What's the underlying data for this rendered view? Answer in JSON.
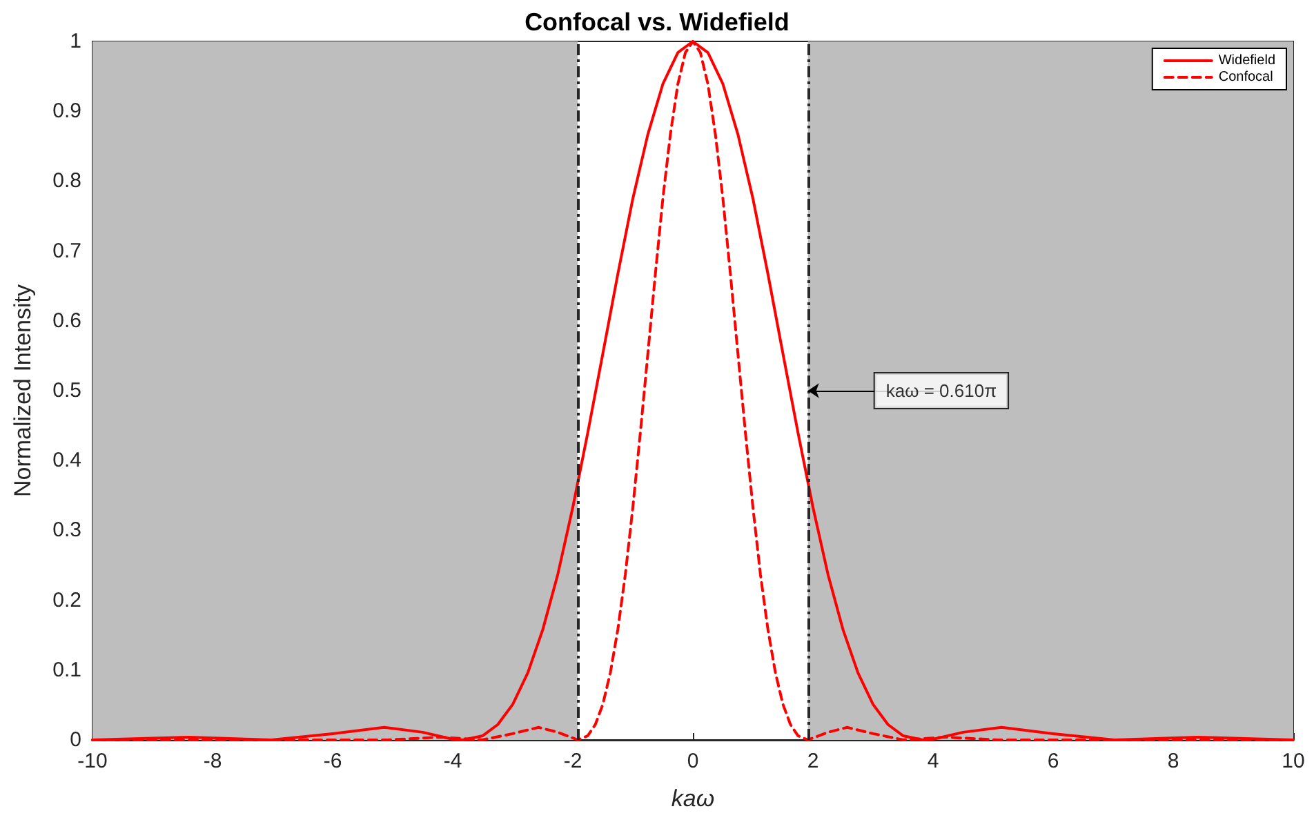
{
  "chart_data": {
    "type": "line",
    "title": "Confocal vs. Widefield",
    "xlabel": "kaω",
    "ylabel": "Normalized Intensity",
    "xlim": [
      -10,
      10
    ],
    "xticks": [
      -10,
      -8,
      -6,
      -4,
      -2,
      0,
      2,
      4,
      6,
      8,
      10
    ],
    "ylim": [
      0,
      1
    ],
    "yticks": [
      0,
      0.1,
      0.2,
      0.3,
      0.4,
      0.5,
      0.6,
      0.7,
      0.8,
      0.9,
      1
    ],
    "grid": false,
    "legend": "top right",
    "marker": "none",
    "series": [
      {
        "name": "Widefield",
        "color": "#ff0000",
        "line_style": "solid",
        "x": [
          -10,
          -8.4,
          -7.02,
          -6,
          -5.14,
          -4.5,
          -4,
          -3.83,
          -3.5,
          -3.25,
          -3,
          -2.75,
          -2.5,
          -2.25,
          -2,
          -1.75,
          -1.5,
          -1.25,
          -1,
          -0.75,
          -0.5,
          -0.25,
          0,
          0.25,
          0.5,
          0.75,
          1,
          1.25,
          1.5,
          1.75,
          2,
          2.25,
          2.5,
          2.75,
          3,
          3.25,
          3.5,
          3.83,
          4,
          4.5,
          5.14,
          6,
          7.02,
          8.4,
          10
        ],
        "values": [
          0,
          0.004,
          0,
          0.009,
          0.018,
          0.011,
          0.001,
          0,
          0.006,
          0.022,
          0.051,
          0.096,
          0.158,
          0.237,
          0.333,
          0.44,
          0.553,
          0.667,
          0.775,
          0.867,
          0.939,
          0.984,
          1,
          0.984,
          0.939,
          0.867,
          0.775,
          0.667,
          0.553,
          0.44,
          0.333,
          0.237,
          0.158,
          0.096,
          0.051,
          0.022,
          0.006,
          0,
          0.001,
          0.011,
          0.018,
          0.009,
          0,
          0.004,
          0
        ]
      },
      {
        "name": "Confocal",
        "color": "#ff0000",
        "line_style": "dashed",
        "x": [
          -10,
          -5.08,
          -4.2,
          -3.51,
          -3,
          -2.57,
          -2.25,
          -1.916,
          -1.75,
          -1.625,
          -1.5,
          -1.375,
          -1.25,
          -1.125,
          -1,
          -0.875,
          -0.75,
          -0.625,
          -0.5,
          -0.375,
          -0.25,
          -0.125,
          0,
          0.125,
          0.25,
          0.375,
          0.5,
          0.625,
          0.75,
          0.875,
          1,
          1.125,
          1.25,
          1.375,
          1.5,
          1.625,
          1.75,
          1.916,
          2.25,
          2.57,
          3,
          3.51,
          4.2,
          5.08,
          10
        ],
        "values": [
          0,
          0,
          0.004,
          0,
          0.009,
          0.018,
          0.011,
          0,
          0.006,
          0.022,
          0.051,
          0.096,
          0.158,
          0.237,
          0.333,
          0.44,
          0.553,
          0.667,
          0.775,
          0.867,
          0.939,
          0.984,
          1,
          0.984,
          0.939,
          0.867,
          0.775,
          0.667,
          0.553,
          0.44,
          0.333,
          0.237,
          0.158,
          0.096,
          0.051,
          0.022,
          0.006,
          0,
          0.011,
          0.018,
          0.009,
          0,
          0.004,
          0,
          0
        ]
      }
    ],
    "bands": [
      {
        "axis": "x",
        "from": -10,
        "to": -1.916,
        "color": "#bebebe"
      },
      {
        "axis": "x",
        "from": 1.916,
        "to": 10,
        "color": "#bebebe"
      }
    ],
    "ref_lines": [
      {
        "axis": "x",
        "value": -1.916,
        "color": "#262626",
        "line_style": "dashdot"
      },
      {
        "axis": "x",
        "value": 1.916,
        "color": "#262626",
        "line_style": "dashdot"
      }
    ],
    "annotations": [
      {
        "text": "kaω = 0.610π",
        "x": 1.916,
        "y": 0.5
      }
    ]
  }
}
